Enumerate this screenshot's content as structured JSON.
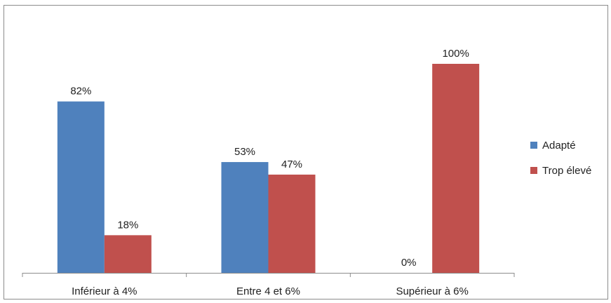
{
  "chart_data": {
    "type": "bar",
    "categories": [
      "Inférieur à 4%",
      "Entre 4 et 6%",
      "Supérieur à 6%"
    ],
    "series": [
      {
        "name": "Adapté",
        "values": [
          82,
          53,
          0
        ],
        "labels": [
          "82%",
          "53%",
          "0%"
        ],
        "color": "#4f81bd"
      },
      {
        "name": "Trop élevé",
        "values": [
          18,
          47,
          100
        ],
        "labels": [
          "18%",
          "47%",
          "100%"
        ],
        "color": "#c0504d"
      }
    ],
    "ylim": [
      0,
      100
    ],
    "grid": false,
    "legend": "right"
  }
}
